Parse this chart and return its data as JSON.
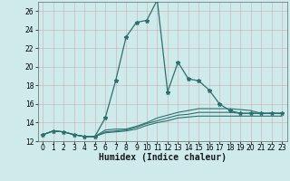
{
  "xlabel": "Humidex (Indice chaleur)",
  "bg_color": "#ceeaea",
  "line_color": "#2d7070",
  "grid_color_major": "#c0d8d8",
  "grid_color_minor": "#dce8e8",
  "xlim": [
    -0.5,
    23.5
  ],
  "ylim": [
    12,
    27
  ],
  "yticks": [
    12,
    14,
    16,
    18,
    20,
    22,
    24,
    26
  ],
  "xticks": [
    0,
    1,
    2,
    3,
    4,
    5,
    6,
    7,
    8,
    9,
    10,
    11,
    12,
    13,
    14,
    15,
    16,
    17,
    18,
    19,
    20,
    21,
    22,
    23
  ],
  "series1": [
    12.7,
    13.1,
    13.0,
    12.7,
    12.5,
    12.5,
    14.5,
    18.5,
    23.2,
    24.8,
    25.0,
    27.2,
    17.3,
    20.5,
    18.7,
    18.5,
    17.5,
    16.0,
    15.3,
    15.0,
    15.0,
    15.0,
    15.0,
    15.0
  ],
  "series2": [
    12.7,
    13.1,
    13.0,
    12.7,
    12.5,
    12.5,
    13.2,
    13.3,
    13.3,
    13.6,
    14.0,
    14.5,
    14.8,
    15.1,
    15.3,
    15.5,
    15.5,
    15.5,
    15.5,
    15.4,
    15.3,
    15.0,
    15.0,
    15.0
  ],
  "series3": [
    12.7,
    13.1,
    13.0,
    12.7,
    12.5,
    12.5,
    13.0,
    13.1,
    13.2,
    13.5,
    13.9,
    14.2,
    14.5,
    14.8,
    14.9,
    15.1,
    15.1,
    15.1,
    15.1,
    15.0,
    15.0,
    15.0,
    15.0,
    15.0
  ],
  "series4": [
    12.7,
    13.1,
    13.0,
    12.7,
    12.5,
    12.5,
    12.9,
    13.0,
    13.1,
    13.3,
    13.7,
    14.0,
    14.2,
    14.5,
    14.6,
    14.7,
    14.7,
    14.7,
    14.7,
    14.7,
    14.7,
    14.7,
    14.7,
    14.7
  ],
  "fontsize_axis_label": 7,
  "fontsize_ticks": 5.5
}
